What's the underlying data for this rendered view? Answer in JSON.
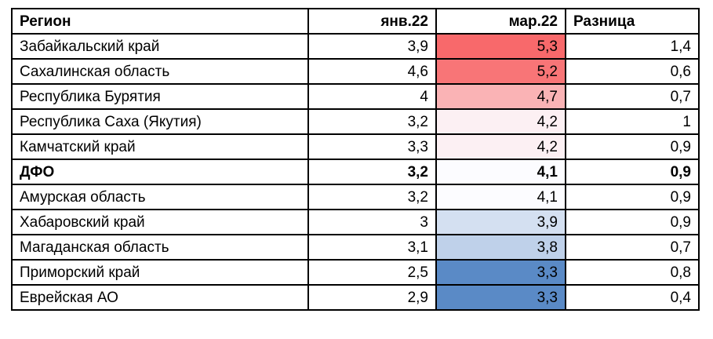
{
  "chart_data": {
    "type": "table",
    "header": {
      "region": "Регион",
      "jan": "янв.22",
      "mar": "мар.22",
      "diff": "Разница"
    },
    "rows": [
      {
        "region": "Забайкальский край",
        "jan": 3.9,
        "mar": 5.3,
        "diff": 1.4,
        "jan_text": "3,9",
        "mar_text": "5,3",
        "diff_text": "1,4",
        "mar_bg": "#F8696B",
        "bold": false
      },
      {
        "region": "Сахалинская область",
        "jan": 4.6,
        "mar": 5.2,
        "diff": 0.6,
        "jan_text": "4,6",
        "mar_text": "5,2",
        "diff_text": "0,6",
        "mar_bg": "#F87577",
        "bold": false
      },
      {
        "region": "Республика Бурятия",
        "jan": 4,
        "mar": 4.7,
        "diff": 0.7,
        "jan_text": "4",
        "mar_text": "4,7",
        "diff_text": "0,7",
        "mar_bg": "#FAB3B5",
        "bold": false
      },
      {
        "region": "Республика Саха (Якутия)",
        "jan": 3.2,
        "mar": 4.2,
        "diff": 1,
        "jan_text": "3,2",
        "mar_text": "4,2",
        "diff_text": "1",
        "mar_bg": "#FCF0F3",
        "bold": false
      },
      {
        "region": "Камчатский край",
        "jan": 3.3,
        "mar": 4.2,
        "diff": 0.9,
        "jan_text": "3,3",
        "mar_text": "4,2",
        "diff_text": "0,9",
        "mar_bg": "#FCF0F3",
        "bold": false
      },
      {
        "region": "ДФО",
        "jan": 3.2,
        "mar": 4.1,
        "diff": 0.9,
        "jan_text": "3,2",
        "mar_text": "4,1",
        "diff_text": "0,9",
        "mar_bg": "#FCFCFF",
        "bold": true
      },
      {
        "region": "Амурская область",
        "jan": 3.2,
        "mar": 4.1,
        "diff": 0.9,
        "jan_text": "3,2",
        "mar_text": "4,1",
        "diff_text": "0,9",
        "mar_bg": "#FCFCFF",
        "bold": false
      },
      {
        "region": "Хабаровский край",
        "jan": 3,
        "mar": 3.9,
        "diff": 0.9,
        "jan_text": "3",
        "mar_text": "3,9",
        "diff_text": "0,9",
        "mar_bg": "#D4E0F1",
        "bold": false
      },
      {
        "region": "Магаданская область",
        "jan": 3.1,
        "mar": 3.8,
        "diff": 0.7,
        "jan_text": "3,1",
        "mar_text": "3,8",
        "diff_text": "0,7",
        "mar_bg": "#BFD1EA",
        "bold": false
      },
      {
        "region": "Приморский край",
        "jan": 2.5,
        "mar": 3.3,
        "diff": 0.8,
        "jan_text": "2,5",
        "mar_text": "3,3",
        "diff_text": "0,8",
        "mar_bg": "#5A8AC6",
        "bold": false
      },
      {
        "region": "Еврейская АО",
        "jan": 2.9,
        "mar": 3.3,
        "diff": 0.4,
        "jan_text": "2,9",
        "mar_text": "3,3",
        "diff_text": "0,4",
        "mar_bg": "#5A8AC6",
        "bold": false
      }
    ],
    "colors": {
      "scale_max_red": "#F8696B",
      "scale_mid_white": "#FCFCFF",
      "scale_min_blue": "#5A8AC6",
      "border": "#000000",
      "text": "#000000"
    },
    "layout": {
      "color_scale_column": "мар.22",
      "bold_row_label": "ДФО"
    }
  }
}
